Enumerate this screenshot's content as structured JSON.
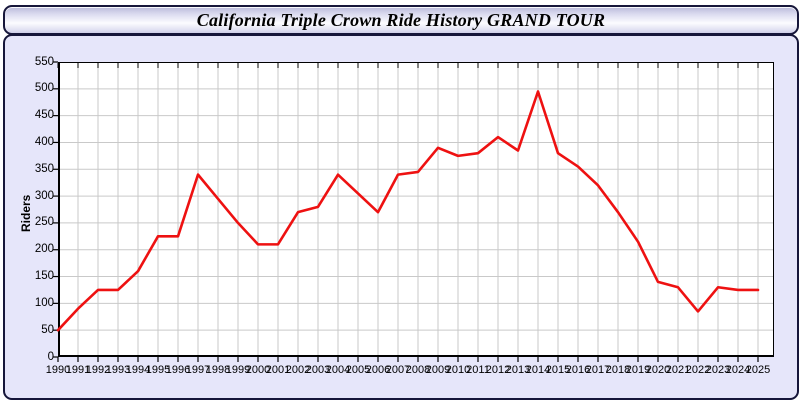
{
  "window": {
    "title": "California Triple Crown Ride History GRAND TOUR"
  },
  "chart_data": {
    "type": "line",
    "title": "California Triple Crown Ride History GRAND TOUR",
    "xlabel": "",
    "ylabel": "Riders",
    "categories": [
      "1990",
      "1991",
      "1992",
      "1993",
      "1994",
      "1995",
      "1996",
      "1997",
      "1998",
      "1999",
      "2000",
      "2001",
      "2002",
      "2003",
      "2004",
      "2005",
      "2006",
      "2007",
      "2008",
      "2009",
      "2010",
      "2011",
      "2012",
      "2013",
      "2014",
      "2015",
      "2016",
      "2017",
      "2018",
      "2019",
      "2020",
      "2021",
      "2022",
      "2023",
      "2024",
      "2025"
    ],
    "series": [
      {
        "name": "Riders",
        "color": "#ee1111",
        "values": [
          50,
          90,
          125,
          125,
          160,
          225,
          225,
          340,
          295,
          250,
          210,
          210,
          270,
          280,
          340,
          305,
          270,
          340,
          345,
          390,
          375,
          380,
          410,
          385,
          495,
          380,
          355,
          320,
          270,
          215,
          140,
          130,
          85,
          130,
          125,
          125
        ]
      }
    ],
    "ylim": [
      0,
      550
    ],
    "ytick_step": 50,
    "grid": true,
    "legend": "none"
  },
  "colors": {
    "panel_background": "#e6e6fa",
    "plot_background": "#ffffff",
    "gridline": "#c9c9c9",
    "axis": "#000000",
    "line": "#ee1111",
    "border": "#16163a"
  }
}
